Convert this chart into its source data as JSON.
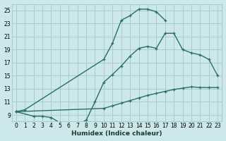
{
  "xlabel": "Humidex (Indice chaleur)",
  "bg_color": "#cce8ea",
  "grid_color": "#aacccc",
  "line_color": "#2a7060",
  "xlim": [
    -0.5,
    23.5
  ],
  "ylim": [
    8.0,
    26.0
  ],
  "xticks": [
    0,
    1,
    2,
    3,
    4,
    5,
    6,
    7,
    8,
    9,
    10,
    11,
    12,
    13,
    14,
    15,
    16,
    17,
    18,
    19,
    20,
    21,
    22,
    23
  ],
  "yticks": [
    9,
    11,
    13,
    15,
    17,
    19,
    21,
    23,
    25
  ],
  "line1_x": [
    0,
    1,
    10,
    11,
    12,
    13,
    14,
    15,
    16,
    17
  ],
  "line1_y": [
    9.5,
    9.8,
    17.5,
    20.0,
    23.5,
    24.2,
    25.2,
    25.2,
    24.8,
    23.5
  ],
  "line2_x": [
    0,
    2,
    3,
    4,
    5,
    6,
    7,
    8,
    9,
    10,
    11,
    12,
    13,
    14,
    15,
    16,
    17,
    18,
    19,
    20,
    21,
    22,
    23
  ],
  "line2_y": [
    9.5,
    8.8,
    8.8,
    8.6,
    7.8,
    7.5,
    7.5,
    8.2,
    11.0,
    14.0,
    15.2,
    16.5,
    18.0,
    19.2,
    19.5,
    19.2,
    21.5,
    21.5,
    19.0,
    18.5,
    18.2,
    17.5,
    15.0
  ],
  "line3_x": [
    0,
    10,
    11,
    12,
    13,
    14,
    15,
    16,
    17,
    18,
    19,
    20,
    21,
    22,
    23
  ],
  "line3_y": [
    9.5,
    10.0,
    10.4,
    10.8,
    11.2,
    11.6,
    12.0,
    12.3,
    12.6,
    12.9,
    13.1,
    13.3,
    13.2,
    13.2,
    13.2
  ]
}
